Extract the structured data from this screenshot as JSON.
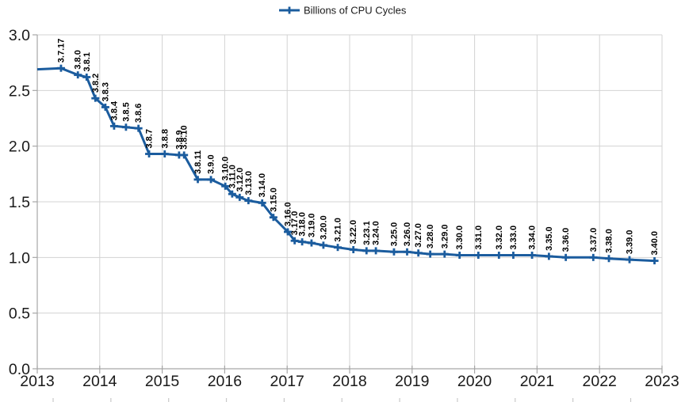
{
  "chart_data": {
    "type": "line",
    "title": "",
    "legend": {
      "position": "top-center",
      "entries": [
        "Billions of CPU Cycles"
      ]
    },
    "xlabel": "",
    "ylabel": "",
    "xlim": [
      2013,
      2023
    ],
    "ylim": [
      0.0,
      3.0
    ],
    "grid": true,
    "x_ticks": [
      2013,
      2014,
      2015,
      2016,
      2017,
      2018,
      2019,
      2020,
      2021,
      2022,
      2023
    ],
    "x_tick_labels": [
      "2013",
      "2014",
      "2015",
      "2016",
      "2017",
      "2018",
      "2019",
      "2020",
      "2021",
      "2022",
      "2023"
    ],
    "y_ticks": [
      0.0,
      0.5,
      1.0,
      1.5,
      2.0,
      2.5,
      3.0
    ],
    "y_tick_labels": [
      "0.0",
      "0.5",
      "1.0",
      "1.5",
      "2.0",
      "2.5",
      "3.0"
    ],
    "series": [
      {
        "name": "Billions of CPU Cycles",
        "color": "#1b5c9e",
        "marker": "plus",
        "points": [
          {
            "label": "",
            "x": 2013.0,
            "y": 2.69
          },
          {
            "label": "3.7.17",
            "x": 2013.38,
            "y": 2.7
          },
          {
            "label": "3.8.0",
            "x": 2013.65,
            "y": 2.64
          },
          {
            "label": "3.8.1",
            "x": 2013.79,
            "y": 2.62
          },
          {
            "label": "3.8.2",
            "x": 2013.93,
            "y": 2.43
          },
          {
            "label": "3.8.3",
            "x": 2014.09,
            "y": 2.35
          },
          {
            "label": "3.8.4",
            "x": 2014.23,
            "y": 2.18
          },
          {
            "label": "3.8.5",
            "x": 2014.42,
            "y": 2.17
          },
          {
            "label": "3.8.6",
            "x": 2014.62,
            "y": 2.16
          },
          {
            "label": "3.8.7",
            "x": 2014.79,
            "y": 1.93
          },
          {
            "label": "3.8.8",
            "x": 2015.04,
            "y": 1.93
          },
          {
            "label": "3.8.9",
            "x": 2015.27,
            "y": 1.92
          },
          {
            "label": "3.8.10",
            "x": 2015.35,
            "y": 1.92
          },
          {
            "label": "3.8.11",
            "x": 2015.57,
            "y": 1.7
          },
          {
            "label": "3.9.0",
            "x": 2015.78,
            "y": 1.7
          },
          {
            "label": "3.10.0",
            "x": 2016.01,
            "y": 1.64
          },
          {
            "label": "3.11.0",
            "x": 2016.12,
            "y": 1.57
          },
          {
            "label": "3.12.0",
            "x": 2016.24,
            "y": 1.54
          },
          {
            "label": "3.13.0",
            "x": 2016.38,
            "y": 1.51
          },
          {
            "label": "3.14.0",
            "x": 2016.6,
            "y": 1.49
          },
          {
            "label": "3.15.0",
            "x": 2016.78,
            "y": 1.36
          },
          {
            "label": "3.16.0",
            "x": 2017.01,
            "y": 1.23
          },
          {
            "label": "3.17.0",
            "x": 2017.12,
            "y": 1.15
          },
          {
            "label": "3.18.0",
            "x": 2017.24,
            "y": 1.14
          },
          {
            "label": "3.19.0",
            "x": 2017.39,
            "y": 1.13
          },
          {
            "label": "3.20.0",
            "x": 2017.58,
            "y": 1.11
          },
          {
            "label": "3.21.0",
            "x": 2017.81,
            "y": 1.09
          },
          {
            "label": "3.22.0",
            "x": 2018.06,
            "y": 1.07
          },
          {
            "label": "3.23.1",
            "x": 2018.27,
            "y": 1.06
          },
          {
            "label": "3.24.0",
            "x": 2018.42,
            "y": 1.06
          },
          {
            "label": "3.25.0",
            "x": 2018.71,
            "y": 1.05
          },
          {
            "label": "3.26.0",
            "x": 2018.92,
            "y": 1.05
          },
          {
            "label": "3.27.0",
            "x": 2019.1,
            "y": 1.04
          },
          {
            "label": "3.28.0",
            "x": 2019.29,
            "y": 1.03
          },
          {
            "label": "3.29.0",
            "x": 2019.52,
            "y": 1.03
          },
          {
            "label": "3.30.0",
            "x": 2019.76,
            "y": 1.02
          },
          {
            "label": "3.31.0",
            "x": 2020.06,
            "y": 1.02
          },
          {
            "label": "3.32.0",
            "x": 2020.39,
            "y": 1.02
          },
          {
            "label": "3.33.0",
            "x": 2020.62,
            "y": 1.02
          },
          {
            "label": "3.34.0",
            "x": 2020.92,
            "y": 1.02
          },
          {
            "label": "3.35.0",
            "x": 2021.19,
            "y": 1.01
          },
          {
            "label": "3.36.0",
            "x": 2021.46,
            "y": 1.0
          },
          {
            "label": "3.37.0",
            "x": 2021.9,
            "y": 1.0
          },
          {
            "label": "3.38.0",
            "x": 2022.15,
            "y": 0.99
          },
          {
            "label": "3.39.0",
            "x": 2022.48,
            "y": 0.98
          },
          {
            "label": "3.40.0",
            "x": 2022.88,
            "y": 0.97
          }
        ]
      }
    ]
  },
  "colors": {
    "background": "#ffffff",
    "gridline": "#d3d3d3",
    "axis": "#a6a6a6",
    "tick_label": "#1a1a1a",
    "data_label": "#000000",
    "series": "#1b5c9e",
    "bottom_marks": "#c9c9c9"
  },
  "bottom_edge_marks": {
    "start_x": 67,
    "spacing": 72.85,
    "count": 11
  }
}
